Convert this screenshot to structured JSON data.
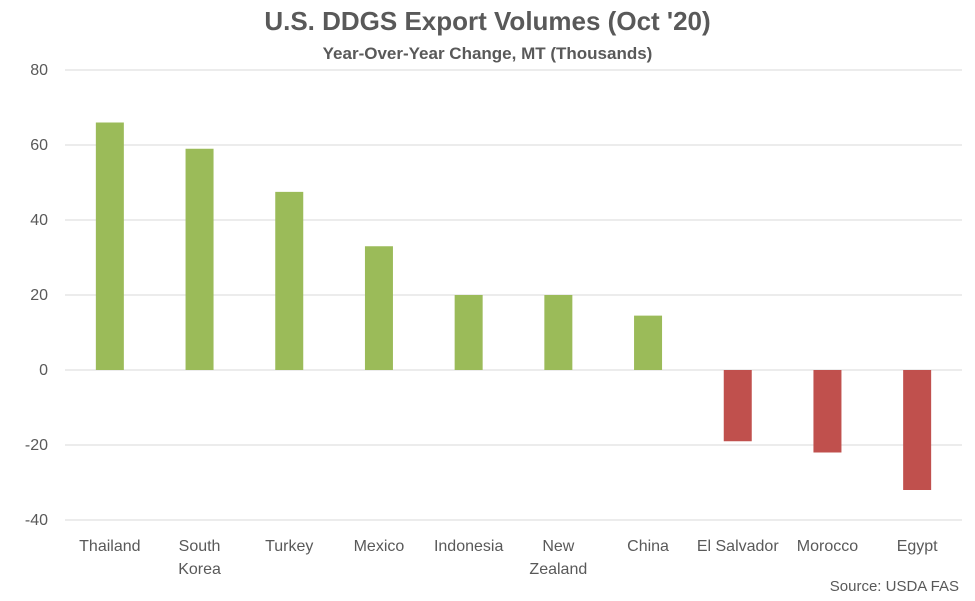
{
  "chart_data": {
    "type": "bar",
    "title": "U.S. DDGS Export Volumes (Oct '20)",
    "subtitle": "Year-Over-Year Change, MT (Thousands)",
    "categories": [
      "Thailand",
      "South Korea",
      "Turkey",
      "Mexico",
      "Indonesia",
      "New Zealand",
      "China",
      "El Salvador",
      "Morocco",
      "Egypt"
    ],
    "category_lines": [
      [
        "Thailand"
      ],
      [
        "South",
        "Korea"
      ],
      [
        "Turkey"
      ],
      [
        "Mexico"
      ],
      [
        "Indonesia"
      ],
      [
        "New",
        "Zealand"
      ],
      [
        "China"
      ],
      [
        "El Salvador"
      ],
      [
        "Morocco"
      ],
      [
        "Egypt"
      ]
    ],
    "values": [
      66,
      59,
      47.5,
      33,
      20,
      20,
      14.5,
      -19,
      -22,
      -32
    ],
    "ylim": [
      -40,
      80
    ],
    "yticks": [
      80,
      60,
      40,
      20,
      0,
      -20,
      -40
    ],
    "grid": true,
    "colors": {
      "positive": "#9BBB59",
      "negative": "#C0504D",
      "grid": "#d9d9d9",
      "text": "#595959"
    },
    "source": "Source: USDA FAS"
  }
}
